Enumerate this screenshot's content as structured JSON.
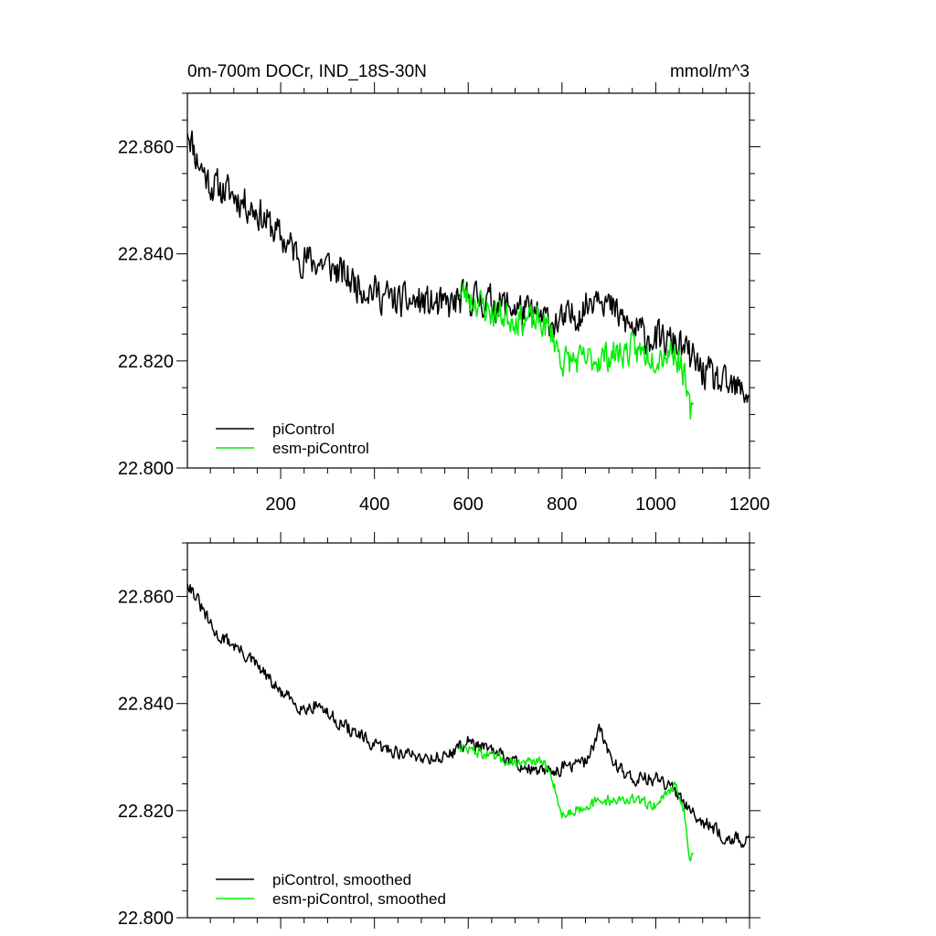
{
  "chart_data": [
    {
      "type": "line",
      "title": "0m-700m DOCr, IND_18S-30N",
      "units": "mmol/m^3",
      "xlim": [
        1,
        1200
      ],
      "ylim": [
        22.8,
        22.87
      ],
      "xticks": [
        200,
        400,
        600,
        800,
        1000,
        1200
      ],
      "xtick_labels": [
        "200",
        "400",
        "600",
        "800",
        "1000",
        "1200"
      ],
      "yticks": [
        22.8,
        22.82,
        22.84,
        22.86
      ],
      "ytick_labels": [
        "22.800",
        "22.820",
        "22.840",
        "22.860"
      ],
      "legend_position": "bottom-left",
      "series": [
        {
          "name": "piControl",
          "color": "#000000",
          "x_start": 1,
          "x_end": 1200,
          "anchors": [
            [
              1,
              22.864
            ],
            [
              20,
              22.858
            ],
            [
              50,
              22.853
            ],
            [
              100,
              22.851
            ],
            [
              150,
              22.848
            ],
            [
              200,
              22.843
            ],
            [
              250,
              22.839
            ],
            [
              300,
              22.838
            ],
            [
              350,
              22.835
            ],
            [
              400,
              22.833
            ],
            [
              450,
              22.831
            ],
            [
              500,
              22.831
            ],
            [
              550,
              22.83
            ],
            [
              600,
              22.832
            ],
            [
              650,
              22.831
            ],
            [
              700,
              22.83
            ],
            [
              750,
              22.828
            ],
            [
              800,
              22.827
            ],
            [
              850,
              22.83
            ],
            [
              880,
              22.834
            ],
            [
              900,
              22.83
            ],
            [
              950,
              22.826
            ],
            [
              1000,
              22.824
            ],
            [
              1050,
              22.823
            ],
            [
              1100,
              22.818
            ],
            [
              1150,
              22.815
            ],
            [
              1200,
              22.814
            ]
          ],
          "noise": 0.0045,
          "seed": 11
        },
        {
          "name": "esm-piControl",
          "color": "#00ee00",
          "x_start": 580,
          "x_end": 1080,
          "anchors": [
            [
              580,
              22.833
            ],
            [
              620,
              22.831
            ],
            [
              650,
              22.829
            ],
            [
              700,
              22.828
            ],
            [
              760,
              22.827
            ],
            [
              780,
              22.825
            ],
            [
              800,
              22.82
            ],
            [
              850,
              22.82
            ],
            [
              900,
              22.821
            ],
            [
              950,
              22.822
            ],
            [
              1000,
              22.821
            ],
            [
              1040,
              22.822
            ],
            [
              1060,
              22.818
            ],
            [
              1070,
              22.811
            ],
            [
              1080,
              22.81
            ]
          ],
          "noise": 0.004,
          "seed": 23
        }
      ]
    },
    {
      "type": "line",
      "title": "",
      "xlim": [
        1,
        1200
      ],
      "ylim": [
        22.8,
        22.87
      ],
      "xticks": [
        200,
        400,
        600,
        800,
        1000,
        1200
      ],
      "yticks": [
        22.8,
        22.82,
        22.84,
        22.86
      ],
      "ytick_labels": [
        "22.800",
        "22.820",
        "22.840",
        "22.860"
      ],
      "legend_position": "bottom-left",
      "series": [
        {
          "name": "piControl, smoothed",
          "color": "#000000",
          "x_start": 1,
          "x_end": 1200,
          "anchors": [
            [
              1,
              22.863
            ],
            [
              30,
              22.858
            ],
            [
              60,
              22.853
            ],
            [
              100,
              22.851
            ],
            [
              150,
              22.847
            ],
            [
              200,
              22.842
            ],
            [
              250,
              22.839
            ],
            [
              280,
              22.84
            ],
            [
              300,
              22.838
            ],
            [
              350,
              22.835
            ],
            [
              400,
              22.832
            ],
            [
              450,
              22.831
            ],
            [
              500,
              22.83
            ],
            [
              550,
              22.83
            ],
            [
              600,
              22.833
            ],
            [
              650,
              22.831
            ],
            [
              700,
              22.829
            ],
            [
              750,
              22.827
            ],
            [
              800,
              22.828
            ],
            [
              850,
              22.829
            ],
            [
              880,
              22.835
            ],
            [
              910,
              22.829
            ],
            [
              950,
              22.826
            ],
            [
              1000,
              22.826
            ],
            [
              1050,
              22.823
            ],
            [
              1100,
              22.818
            ],
            [
              1150,
              22.815
            ],
            [
              1200,
              22.814
            ]
          ],
          "noise": 0.0018,
          "seed": 31
        },
        {
          "name": "esm-piControl, smoothed",
          "color": "#00ee00",
          "x_start": 580,
          "x_end": 1080,
          "anchors": [
            [
              580,
              22.832
            ],
            [
              620,
              22.831
            ],
            [
              650,
              22.83
            ],
            [
              700,
              22.829
            ],
            [
              760,
              22.829
            ],
            [
              780,
              22.826
            ],
            [
              800,
              22.819
            ],
            [
              850,
              22.821
            ],
            [
              900,
              22.822
            ],
            [
              950,
              22.822
            ],
            [
              1000,
              22.821
            ],
            [
              1040,
              22.825
            ],
            [
              1060,
              22.82
            ],
            [
              1070,
              22.812
            ],
            [
              1080,
              22.811
            ]
          ],
          "noise": 0.0014,
          "seed": 47
        }
      ]
    }
  ]
}
